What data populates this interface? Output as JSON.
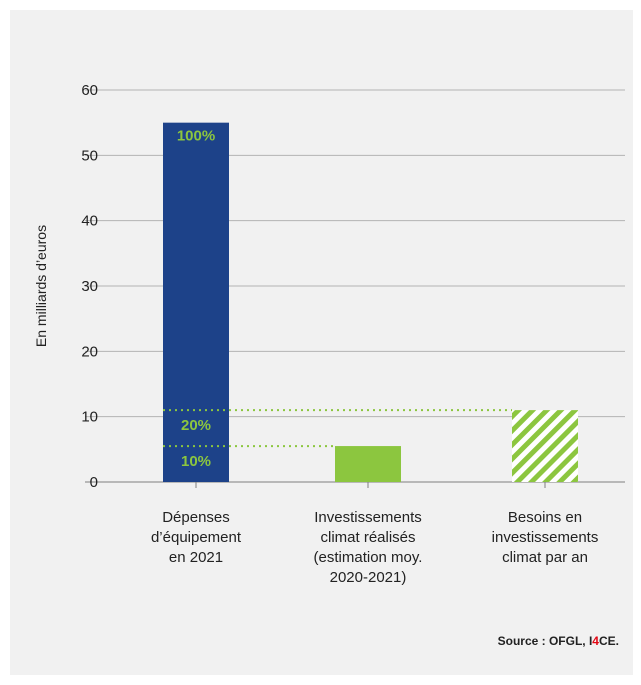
{
  "chart_data": {
    "type": "bar",
    "ylabel": "En milliards d’euros",
    "xlabel": "",
    "title": "",
    "ylim": [
      0,
      60
    ],
    "yticks": [
      0,
      10,
      20,
      30,
      40,
      50,
      60
    ],
    "grid": true,
    "categories": [
      [
        "Dépenses",
        "d’équipement",
        "en 2021"
      ],
      [
        "Investissements",
        "climat réalisés",
        "(estimation moy.",
        "2020-2021)"
      ],
      [
        "Besoins en",
        "investissements",
        "climat par an"
      ]
    ],
    "values": [
      55,
      5.5,
      11
    ],
    "bar_styles": [
      "solid",
      "solid",
      "hatched"
    ],
    "reference_lines": [
      {
        "value": 11,
        "label": "20%"
      },
      {
        "value": 5.5,
        "label": "10%"
      }
    ],
    "top_label": "100%",
    "colors": {
      "blue": "#1d4289",
      "green": "#8cc63f",
      "grid": "#b3b3b3",
      "axis": "#7f7f7f"
    }
  },
  "source": {
    "prefix": "Source : OFGL, ",
    "brand_a": "I",
    "brand_b": "4",
    "brand_c": "CE",
    "suffix": "."
  }
}
